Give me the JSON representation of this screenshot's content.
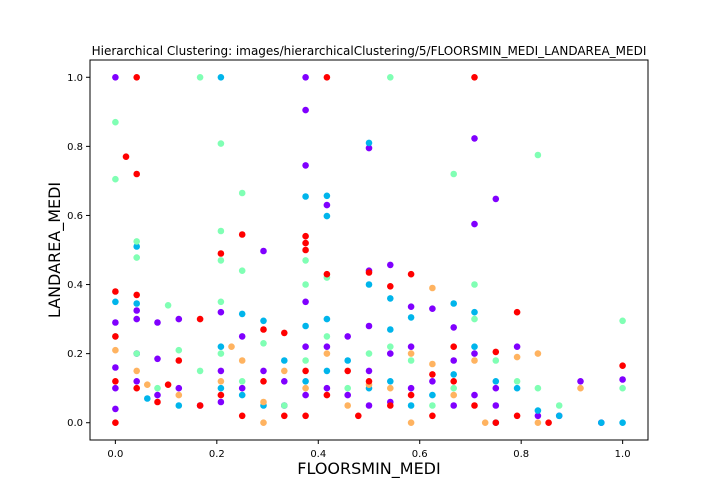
{
  "chart_data": {
    "type": "scatter",
    "title": "Hierarchical Clustering: images/hierarchicalClustering/5/FLOORSMIN_MEDI_LANDAREA_MEDI",
    "xlabel": "FLOORSMIN_MEDI",
    "ylabel": "LANDAREA_MEDI",
    "xlim": [
      -0.05,
      1.05
    ],
    "ylim": [
      -0.05,
      1.05
    ],
    "xticks": [
      0.0,
      0.2,
      0.4,
      0.6,
      0.8,
      1.0
    ],
    "xtick_labels": [
      "0.0",
      "0.2",
      "0.4",
      "0.6",
      "0.8",
      "1.0"
    ],
    "yticks": [
      0.0,
      0.2,
      0.4,
      0.6,
      0.8,
      1.0
    ],
    "ytick_labels": [
      "0.0",
      "0.2",
      "0.4",
      "0.6",
      "0.8",
      "1.0"
    ],
    "grid": false,
    "legend": "none",
    "series": [
      {
        "color": "#8000ff",
        "points": [
          [
            0.0,
            1.0
          ],
          [
            0.375,
            1.0
          ],
          [
            0.375,
            0.905
          ],
          [
            0.375,
            0.745
          ],
          [
            0.417,
            0.63
          ],
          [
            0.708,
            0.823
          ],
          [
            0.708,
            0.575
          ],
          [
            0.75,
            0.648
          ],
          [
            0.5,
            0.795
          ],
          [
            0.542,
            0.457
          ],
          [
            0.5,
            0.44
          ],
          [
            0.583,
            0.336
          ],
          [
            0.625,
            0.33
          ],
          [
            0.667,
            0.276
          ],
          [
            0.292,
            0.497
          ],
          [
            0.042,
            0.325
          ],
          [
            0.042,
            0.3
          ],
          [
            0.083,
            0.29
          ],
          [
            0.083,
            0.185
          ],
          [
            0.125,
            0.3
          ],
          [
            0.0,
            0.29
          ],
          [
            0.0,
            0.16
          ],
          [
            0.0,
            0.1
          ],
          [
            0.0,
            0.04
          ],
          [
            0.042,
            0.2
          ],
          [
            0.042,
            0.12
          ],
          [
            0.083,
            0.08
          ],
          [
            0.125,
            0.1
          ],
          [
            0.167,
            0.05
          ],
          [
            0.208,
            0.32
          ],
          [
            0.208,
            0.15
          ],
          [
            0.208,
            0.06
          ],
          [
            0.25,
            0.25
          ],
          [
            0.25,
            0.1
          ],
          [
            0.292,
            0.15
          ],
          [
            0.333,
            0.12
          ],
          [
            0.333,
            0.05
          ],
          [
            0.375,
            0.35
          ],
          [
            0.375,
            0.22
          ],
          [
            0.375,
            0.08
          ],
          [
            0.417,
            0.22
          ],
          [
            0.417,
            0.1
          ],
          [
            0.458,
            0.25
          ],
          [
            0.458,
            0.08
          ],
          [
            0.5,
            0.28
          ],
          [
            0.5,
            0.15
          ],
          [
            0.5,
            0.05
          ],
          [
            0.542,
            0.2
          ],
          [
            0.542,
            0.06
          ],
          [
            0.583,
            0.22
          ],
          [
            0.583,
            0.1
          ],
          [
            0.625,
            0.12
          ],
          [
            0.667,
            0.18
          ],
          [
            0.667,
            0.05
          ],
          [
            0.708,
            0.2
          ],
          [
            0.708,
            0.08
          ],
          [
            0.75,
            0.1
          ],
          [
            0.792,
            0.22
          ],
          [
            0.833,
            0.02
          ],
          [
            0.875,
            0.02
          ],
          [
            0.917,
            0.12
          ],
          [
            1.0,
            0.125
          ],
          [
            0.958,
            0.0
          ],
          [
            0.75,
            0.05
          ]
        ]
      },
      {
        "color": "#00b5eb",
        "points": [
          [
            0.208,
            1.0
          ],
          [
            0.375,
            0.655
          ],
          [
            0.417,
            0.598
          ],
          [
            0.417,
            0.657
          ],
          [
            0.5,
            0.81
          ],
          [
            0.5,
            0.4
          ],
          [
            0.542,
            0.36
          ],
          [
            0.542,
            0.27
          ],
          [
            0.583,
            0.305
          ],
          [
            0.667,
            0.345
          ],
          [
            0.708,
            0.32
          ],
          [
            0.25,
            0.315
          ],
          [
            0.292,
            0.295
          ],
          [
            0.042,
            0.51
          ],
          [
            0.042,
            0.345
          ],
          [
            0.0,
            0.35
          ],
          [
            0.063,
            0.07
          ],
          [
            0.125,
            0.05
          ],
          [
            0.208,
            0.22
          ],
          [
            0.208,
            0.1
          ],
          [
            0.25,
            0.08
          ],
          [
            0.292,
            0.05
          ],
          [
            0.333,
            0.18
          ],
          [
            0.375,
            0.28
          ],
          [
            0.375,
            0.12
          ],
          [
            0.417,
            0.3
          ],
          [
            0.417,
            0.15
          ],
          [
            0.458,
            0.18
          ],
          [
            0.5,
            0.1
          ],
          [
            0.542,
            0.12
          ],
          [
            0.583,
            0.05
          ],
          [
            0.625,
            0.08
          ],
          [
            0.667,
            0.14
          ],
          [
            0.708,
            0.22
          ],
          [
            0.75,
            0.12
          ],
          [
            0.792,
            0.1
          ],
          [
            0.833,
            0.035
          ],
          [
            0.875,
            0.02
          ],
          [
            0.958,
            0.0
          ],
          [
            1.0,
            0.0
          ],
          [
            0.75,
            0.0
          ]
        ]
      },
      {
        "color": "#80ffb4",
        "points": [
          [
            0.0,
            0.87
          ],
          [
            0.0,
            0.705
          ],
          [
            0.167,
            1.0
          ],
          [
            0.208,
            0.808
          ],
          [
            0.25,
            0.665
          ],
          [
            0.208,
            0.555
          ],
          [
            0.208,
            0.47
          ],
          [
            0.25,
            0.44
          ],
          [
            0.042,
            0.478
          ],
          [
            0.042,
            0.525
          ],
          [
            0.375,
            0.47
          ],
          [
            0.375,
            0.4
          ],
          [
            0.417,
            0.42
          ],
          [
            0.542,
            1.0
          ],
          [
            0.667,
            0.72
          ],
          [
            0.708,
            0.4
          ],
          [
            0.833,
            0.775
          ],
          [
            1.0,
            0.295
          ],
          [
            0.0,
            0.25
          ],
          [
            0.042,
            0.2
          ],
          [
            0.083,
            0.1
          ],
          [
            0.104,
            0.34
          ],
          [
            0.125,
            0.21
          ],
          [
            0.167,
            0.15
          ],
          [
            0.208,
            0.35
          ],
          [
            0.208,
            0.2
          ],
          [
            0.25,
            0.12
          ],
          [
            0.292,
            0.23
          ],
          [
            0.333,
            0.05
          ],
          [
            0.375,
            0.18
          ],
          [
            0.417,
            0.25
          ],
          [
            0.458,
            0.1
          ],
          [
            0.5,
            0.2
          ],
          [
            0.542,
            0.22
          ],
          [
            0.583,
            0.18
          ],
          [
            0.625,
            0.05
          ],
          [
            0.667,
            0.1
          ],
          [
            0.708,
            0.3
          ],
          [
            0.75,
            0.18
          ],
          [
            0.792,
            0.12
          ],
          [
            0.833,
            0.1
          ],
          [
            0.875,
            0.05
          ],
          [
            1.0,
            0.1
          ]
        ]
      },
      {
        "color": "#ffb360",
        "points": [
          [
            0.0,
            0.21
          ],
          [
            0.042,
            0.15
          ],
          [
            0.063,
            0.11
          ],
          [
            0.125,
            0.08
          ],
          [
            0.208,
            0.12
          ],
          [
            0.229,
            0.22
          ],
          [
            0.25,
            0.18
          ],
          [
            0.292,
            0.06
          ],
          [
            0.333,
            0.15
          ],
          [
            0.375,
            0.1
          ],
          [
            0.417,
            0.2
          ],
          [
            0.458,
            0.05
          ],
          [
            0.5,
            0.11
          ],
          [
            0.542,
            0.1
          ],
          [
            0.583,
            0.2
          ],
          [
            0.625,
            0.39
          ],
          [
            0.625,
            0.17
          ],
          [
            0.667,
            0.08
          ],
          [
            0.708,
            0.18
          ],
          [
            0.729,
            0.0
          ],
          [
            0.792,
            0.19
          ],
          [
            0.833,
            0.2
          ],
          [
            0.833,
            0.0
          ],
          [
            0.917,
            0.1
          ],
          [
            0.583,
            0.0
          ],
          [
            0.292,
            0.0
          ]
        ]
      },
      {
        "color": "#ff0000",
        "points": [
          [
            0.042,
            1.0
          ],
          [
            0.417,
            1.0
          ],
          [
            0.708,
            1.0
          ],
          [
            0.021,
            0.77
          ],
          [
            0.042,
            0.72
          ],
          [
            0.0,
            0.38
          ],
          [
            0.042,
            0.37
          ],
          [
            0.375,
            0.54
          ],
          [
            0.375,
            0.52
          ],
          [
            0.375,
            0.5
          ],
          [
            0.25,
            0.545
          ],
          [
            0.208,
            0.49
          ],
          [
            0.167,
            0.3
          ],
          [
            0.292,
            0.27
          ],
          [
            0.333,
            0.26
          ],
          [
            0.417,
            0.43
          ],
          [
            0.5,
            0.435
          ],
          [
            0.583,
            0.43
          ],
          [
            0.542,
            0.395
          ],
          [
            0.792,
            0.32
          ],
          [
            0.667,
            0.22
          ],
          [
            0.75,
            0.205
          ],
          [
            1.0,
            0.165
          ],
          [
            0.0,
            0.25
          ],
          [
            0.0,
            0.12
          ],
          [
            0.0,
            0.0
          ],
          [
            0.042,
            0.1
          ],
          [
            0.083,
            0.06
          ],
          [
            0.104,
            0.11
          ],
          [
            0.125,
            0.18
          ],
          [
            0.167,
            0.05
          ],
          [
            0.208,
            0.08
          ],
          [
            0.25,
            0.02
          ],
          [
            0.292,
            0.12
          ],
          [
            0.333,
            0.02
          ],
          [
            0.375,
            0.15
          ],
          [
            0.375,
            0.02
          ],
          [
            0.417,
            0.08
          ],
          [
            0.458,
            0.15
          ],
          [
            0.479,
            0.02
          ],
          [
            0.5,
            0.12
          ],
          [
            0.542,
            0.05
          ],
          [
            0.583,
            0.08
          ],
          [
            0.625,
            0.14
          ],
          [
            0.625,
            0.02
          ],
          [
            0.667,
            0.12
          ],
          [
            0.708,
            0.05
          ],
          [
            0.75,
            0.0
          ],
          [
            0.792,
            0.02
          ],
          [
            0.854,
            0.0
          ]
        ]
      }
    ]
  }
}
